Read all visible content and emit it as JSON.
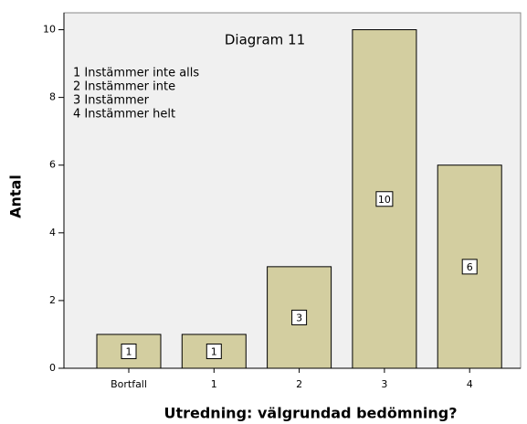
{
  "chart_data": {
    "type": "bar",
    "title": "Diagram 11",
    "annotations": [
      "1 Instämmer inte alls",
      "2 Instämmer inte",
      "3 Instämmer",
      "4 Instämmer helt"
    ],
    "x_label": "Utredning: välgrundad bedömning?",
    "y_label": "Antal",
    "categories": [
      "Bortfall",
      "1",
      "2",
      "3",
      "4"
    ],
    "values": [
      1,
      1,
      3,
      10,
      6
    ],
    "color": "#d3cea0",
    "ylim": [
      0,
      10.5
    ],
    "yticks": [
      0,
      2,
      4,
      6,
      8,
      10
    ],
    "grid": false
  }
}
